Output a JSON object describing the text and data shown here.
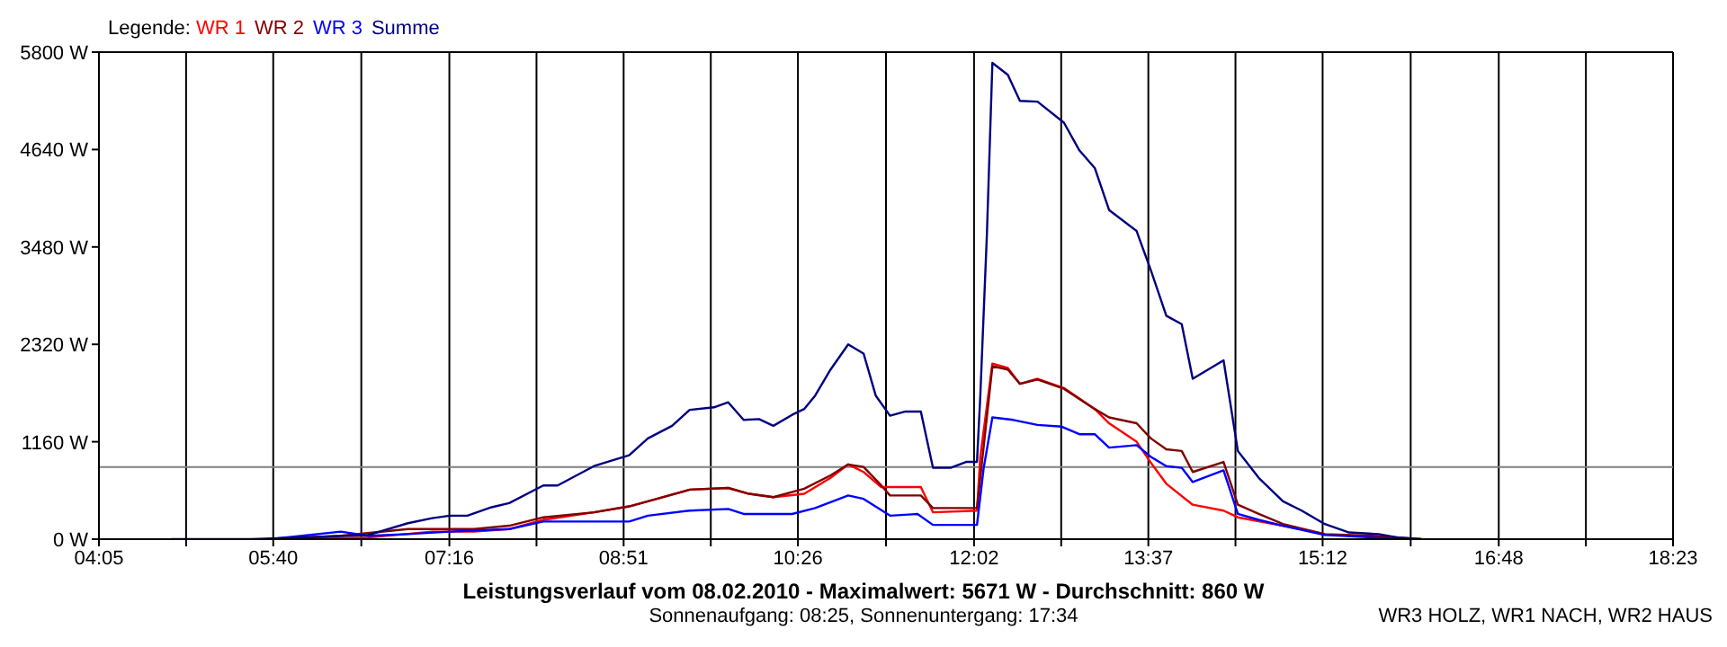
{
  "chart_data": {
    "type": "line",
    "title": "Leistungsverlauf vom 08.02.2010 - Maximalwert: 5671 W - Durchschnitt: 860 W",
    "subtitle": "Sonnenaufgang: 08:25, Sonnenuntergang: 17:34",
    "legend_title": "Legende:",
    "annotations": [
      "WR3 HOLZ, WR1 NACH, WR2 HAUS"
    ],
    "xlim": [
      4.0833,
      18.3833
    ],
    "xticks": [
      {
        "value": 4.0833,
        "label": "04:05"
      },
      {
        "value": 4.875,
        "label": null
      },
      {
        "value": 5.6667,
        "label": "05:40"
      },
      {
        "value": 6.4667,
        "label": null
      },
      {
        "value": 7.2667,
        "label": "07:16"
      },
      {
        "value": 8.0583,
        "label": null
      },
      {
        "value": 8.85,
        "label": "08:51"
      },
      {
        "value": 9.6417,
        "label": null
      },
      {
        "value": 10.4333,
        "label": "10:26"
      },
      {
        "value": 11.2333,
        "label": null
      },
      {
        "value": 12.0333,
        "label": "12:02"
      },
      {
        "value": 12.825,
        "label": null
      },
      {
        "value": 13.6167,
        "label": "13:37"
      },
      {
        "value": 14.4083,
        "label": null
      },
      {
        "value": 15.2,
        "label": "15:12"
      },
      {
        "value": 16.0,
        "label": null
      },
      {
        "value": 16.8,
        "label": "16:48"
      },
      {
        "value": 17.5917,
        "label": null
      },
      {
        "value": 18.3833,
        "label": "18:23"
      }
    ],
    "ylim": [
      0,
      5800
    ],
    "yticks": [
      {
        "value": 0,
        "label": "0 W"
      },
      {
        "value": 1160,
        "label": "1160 W"
      },
      {
        "value": 2320,
        "label": "2320 W"
      },
      {
        "value": 3480,
        "label": "3480 W"
      },
      {
        "value": 4640,
        "label": "4640 W"
      },
      {
        "value": 5800,
        "label": "5800 W"
      }
    ],
    "grid": true,
    "legend": "top left",
    "marker": "none",
    "line_style": "solid",
    "ref_lines": [
      {
        "axis": "y",
        "value": 860,
        "color": "#808080"
      }
    ],
    "series": [
      {
        "name": "WR 1",
        "color": "#ff0000",
        "x": [
          5.64,
          6.53,
          7.11,
          7.49,
          7.81,
          8.12,
          8.58,
          8.9,
          9.07,
          9.45,
          9.8,
          9.99,
          10.21,
          10.49,
          10.73,
          10.89,
          11.03,
          11.19,
          11.55,
          11.66,
          12.06,
          12.09,
          12.2,
          12.34,
          12.45,
          12.61,
          12.85,
          13.13,
          13.26,
          13.51,
          13.64,
          13.78,
          14.02,
          14.3,
          14.43,
          14.84,
          15.22
        ],
        "values": [
          0,
          20,
          90,
          90,
          120,
          230,
          320,
          390,
          450,
          590,
          610,
          540,
          500,
          540,
          730,
          890,
          800,
          620,
          620,
          320,
          340,
          980,
          2090,
          2040,
          1850,
          1910,
          1800,
          1550,
          1380,
          1160,
          910,
          660,
          410,
          340,
          260,
          160,
          60
        ]
      },
      {
        "name": "WR 2",
        "color": "#800000",
        "x": [
          5.64,
          6.28,
          6.89,
          7.49,
          7.81,
          8.12,
          8.58,
          8.9,
          9.07,
          9.45,
          9.8,
          9.99,
          10.21,
          10.49,
          10.73,
          10.89,
          11.03,
          11.19,
          11.27,
          11.55,
          11.66,
          12.06,
          12.2,
          12.34,
          12.45,
          12.61,
          12.85,
          13.13,
          13.26,
          13.51,
          13.64,
          13.78,
          13.92,
          14.02,
          14.3,
          14.43,
          14.62,
          14.84,
          15.22,
          15.66,
          16.1
        ],
        "values": [
          0,
          40,
          120,
          120,
          160,
          260,
          320,
          390,
          450,
          590,
          610,
          540,
          500,
          600,
          760,
          890,
          860,
          640,
          520,
          520,
          370,
          370,
          2060,
          2020,
          1850,
          1900,
          1790,
          1550,
          1450,
          1380,
          1200,
          1070,
          1050,
          800,
          920,
          410,
          300,
          180,
          60,
          40,
          0
        ]
      },
      {
        "name": "WR 3",
        "color": "#0000ff",
        "x": [
          5.64,
          6.28,
          6.53,
          6.89,
          7.27,
          7.81,
          8.12,
          8.9,
          9.07,
          9.45,
          9.8,
          9.94,
          10.38,
          10.59,
          10.89,
          11.03,
          11.27,
          11.52,
          11.66,
          12.06,
          12.12,
          12.2,
          12.39,
          12.61,
          12.83,
          12.99,
          13.13,
          13.26,
          13.51,
          13.64,
          13.78,
          13.92,
          14.02,
          14.3,
          14.43,
          14.62,
          14.84,
          15.22,
          15.66,
          15.88
        ],
        "values": [
          0,
          90,
          40,
          60,
          90,
          120,
          210,
          210,
          280,
          340,
          360,
          300,
          300,
          370,
          520,
          480,
          280,
          300,
          170,
          170,
          840,
          1450,
          1420,
          1360,
          1340,
          1250,
          1250,
          1090,
          1120,
          980,
          870,
          850,
          680,
          820,
          300,
          230,
          160,
          50,
          20,
          0
        ]
      },
      {
        "name": "Summe",
        "color": "#000080",
        "x": [
          4.74,
          5.47,
          6.53,
          6.89,
          7.11,
          7.27,
          7.43,
          7.65,
          7.81,
          8.12,
          8.25,
          8.58,
          8.9,
          9.07,
          9.29,
          9.45,
          9.67,
          9.8,
          9.94,
          10.08,
          10.21,
          10.38,
          10.49,
          10.59,
          10.73,
          10.89,
          11.03,
          11.14,
          11.27,
          11.41,
          11.55,
          11.66,
          11.82,
          11.96,
          12.06,
          12.09,
          12.15,
          12.2,
          12.34,
          12.45,
          12.61,
          12.85,
          12.99,
          13.13,
          13.26,
          13.51,
          13.64,
          13.78,
          13.92,
          14.02,
          14.3,
          14.43,
          14.62,
          14.84,
          15.01,
          15.22,
          15.44,
          15.71,
          15.88,
          16.1
        ],
        "values": [
          0,
          0,
          50,
          190,
          250,
          280,
          280,
          380,
          430,
          640,
          640,
          870,
          1000,
          1200,
          1350,
          1540,
          1570,
          1630,
          1420,
          1430,
          1350,
          1480,
          1550,
          1710,
          2020,
          2320,
          2210,
          1710,
          1470,
          1520,
          1520,
          850,
          850,
          920,
          920,
          1700,
          3630,
          5671,
          5530,
          5220,
          5210,
          4960,
          4630,
          4420,
          3920,
          3670,
          3200,
          2660,
          2560,
          1910,
          2130,
          1050,
          730,
          450,
          340,
          180,
          80,
          60,
          20,
          0
        ]
      }
    ]
  }
}
